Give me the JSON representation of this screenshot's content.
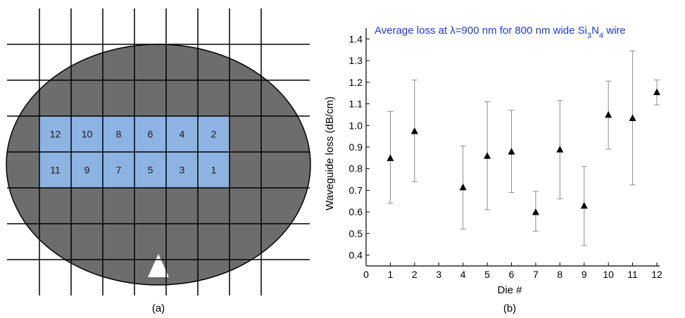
{
  "panel_a": {
    "label": "(a)",
    "dies": [
      {
        "label": "12",
        "row": 0,
        "col": 0
      },
      {
        "label": "10",
        "row": 0,
        "col": 1
      },
      {
        "label": "8",
        "row": 0,
        "col": 2
      },
      {
        "label": "6",
        "row": 0,
        "col": 3
      },
      {
        "label": "4",
        "row": 0,
        "col": 4
      },
      {
        "label": "2",
        "row": 0,
        "col": 5
      },
      {
        "label": "11",
        "row": 1,
        "col": 0
      },
      {
        "label": "9",
        "row": 1,
        "col": 1
      },
      {
        "label": "7",
        "row": 1,
        "col": 2
      },
      {
        "label": "5",
        "row": 1,
        "col": 3
      },
      {
        "label": "3",
        "row": 1,
        "col": 4
      },
      {
        "label": "1",
        "row": 1,
        "col": 5
      }
    ],
    "colors": {
      "wafer": "#6d6d6d",
      "die": "#8db3e2",
      "grid": "#000000",
      "notch": "#ffffff"
    }
  },
  "panel_b": {
    "label": "(b)"
  },
  "chart_data": {
    "type": "scatter",
    "title_parts": [
      "Average loss at ",
      "λ",
      "=900 nm for 800 nm wide Si",
      "3",
      "N",
      "4",
      " wire"
    ],
    "xlabel": "Die #",
    "ylabel": "Waveguide loss (dB/cm)",
    "xlim": [
      0,
      12
    ],
    "ylim": [
      0.35,
      1.45
    ],
    "xticks": [
      0,
      1,
      2,
      3,
      4,
      5,
      6,
      7,
      8,
      9,
      10,
      11,
      12
    ],
    "yticks": [
      0.4,
      0.5,
      0.6,
      0.7,
      0.8,
      0.9,
      1.0,
      1.1,
      1.2,
      1.3,
      1.4
    ],
    "ytick_labels": [
      "0.4",
      "0.5",
      "0.6",
      "0.7",
      "0.8",
      "0.9",
      "1.0",
      "1.1",
      "1.2",
      "1.3",
      "1.4"
    ],
    "grid": false,
    "marker": "triangle",
    "points": [
      {
        "x": 1,
        "y": 0.85,
        "low": 0.64,
        "high": 1.065
      },
      {
        "x": 2,
        "y": 0.975,
        "low": 0.74,
        "high": 1.21
      },
      {
        "x": 4,
        "y": 0.715,
        "low": 0.52,
        "high": 0.905
      },
      {
        "x": 5,
        "y": 0.86,
        "low": 0.61,
        "high": 1.11
      },
      {
        "x": 6,
        "y": 0.88,
        "low": 0.69,
        "high": 1.07
      },
      {
        "x": 7,
        "y": 0.6,
        "low": 0.51,
        "high": 0.695
      },
      {
        "x": 8,
        "y": 0.89,
        "low": 0.66,
        "high": 1.115
      },
      {
        "x": 9,
        "y": 0.63,
        "low": 0.445,
        "high": 0.81
      },
      {
        "x": 10,
        "y": 1.05,
        "low": 0.89,
        "high": 1.205
      },
      {
        "x": 11,
        "y": 1.035,
        "low": 0.725,
        "high": 1.345
      },
      {
        "x": 12,
        "y": 1.155,
        "low": 1.095,
        "high": 1.21
      }
    ],
    "colors": {
      "marker": "#000000",
      "errorbar": "#8c8c8c",
      "title": "#1f3bd1",
      "axis": "#000000"
    }
  }
}
